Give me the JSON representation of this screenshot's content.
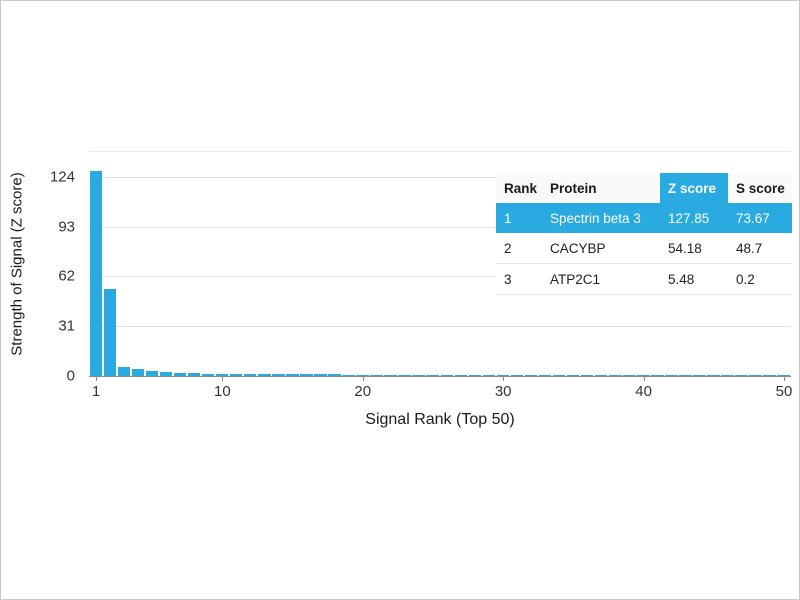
{
  "colors": {
    "accent": "#29ABE2",
    "grid": "#e0e0e0",
    "axis": "#8c8c8c",
    "text": "#222222"
  },
  "chart_data": {
    "type": "bar",
    "title": "",
    "xlabel": "Signal Rank (Top 50)",
    "ylabel": "Strength of Signal (Z score)",
    "x": [
      1,
      2,
      3,
      4,
      5,
      6,
      7,
      8,
      9,
      10,
      11,
      12,
      13,
      14,
      15,
      16,
      17,
      18,
      19,
      20,
      21,
      22,
      23,
      24,
      25,
      26,
      27,
      28,
      29,
      30,
      31,
      32,
      33,
      34,
      35,
      36,
      37,
      38,
      39,
      40,
      41,
      42,
      43,
      44,
      45,
      46,
      47,
      48,
      49,
      50
    ],
    "values": [
      127.85,
      54.18,
      5.48,
      4.1,
      2.9,
      2.3,
      1.9,
      1.7,
      1.5,
      1.4,
      1.3,
      1.25,
      1.2,
      1.15,
      1.1,
      1.05,
      1.0,
      0.95,
      0.9,
      0.88,
      0.85,
      0.82,
      0.8,
      0.78,
      0.75,
      0.72,
      0.7,
      0.68,
      0.65,
      0.62,
      0.6,
      0.58,
      0.55,
      0.52,
      0.5,
      0.48,
      0.45,
      0.43,
      0.42,
      0.4,
      0.38,
      0.36,
      0.34,
      0.32,
      0.3,
      0.28,
      0.26,
      0.24,
      0.22,
      0.2
    ],
    "yticks": [
      0,
      31,
      62,
      93,
      124
    ],
    "xticks": [
      1,
      10,
      20,
      30,
      40,
      50
    ],
    "ylim": [
      0,
      140
    ],
    "grid": "horizontal",
    "legend": "none"
  },
  "table": {
    "headers": [
      "Rank",
      "Protein",
      "Z score",
      "S score"
    ],
    "highlight_header_index": 2,
    "rows": [
      {
        "cells": [
          "1",
          "Spectrin beta 3",
          "127.85",
          "73.67"
        ],
        "highlight": true
      },
      {
        "cells": [
          "2",
          "CACYBP",
          "54.18",
          "48.7"
        ],
        "highlight": false
      },
      {
        "cells": [
          "3",
          "ATP2C1",
          "5.48",
          "0.2"
        ],
        "highlight": false
      }
    ]
  }
}
